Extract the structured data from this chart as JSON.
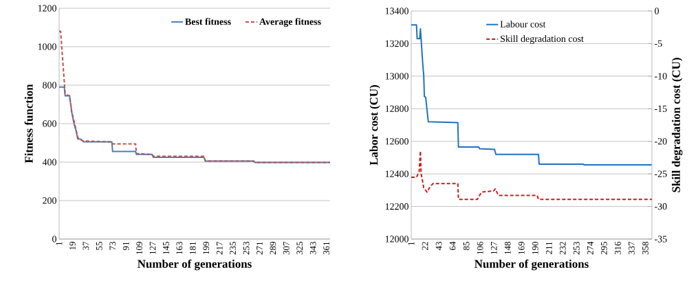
{
  "chart_data": [
    {
      "type": "line",
      "xlabel": "Number of generations",
      "ylabel": "Fitness function",
      "xlim": [
        1,
        366
      ],
      "xticks": [
        1,
        19,
        37,
        55,
        73,
        91,
        109,
        127,
        145,
        163,
        181,
        199,
        217,
        235,
        253,
        271,
        289,
        307,
        325,
        343,
        361
      ],
      "ylim": [
        0,
        1200
      ],
      "yticks": [
        0,
        200,
        400,
        600,
        800,
        1000,
        1200
      ],
      "grid": "y",
      "legend": "top right",
      "series": [
        {
          "name": "Best fitness",
          "color": "#4a7ebb",
          "line_style": "solid",
          "x": [
            1,
            8,
            9,
            15,
            18,
            21,
            24,
            26,
            30,
            34,
            72,
            73,
            104,
            105,
            126,
            128,
            196,
            198,
            263,
            265,
            366
          ],
          "values": [
            790,
            790,
            745,
            745,
            660,
            600,
            560,
            520,
            520,
            505,
            505,
            455,
            455,
            440,
            440,
            425,
            425,
            405,
            405,
            398,
            398
          ]
        },
        {
          "name": "Average fitness",
          "color": "#c0504d",
          "line_style": "dashed",
          "x": [
            1,
            3,
            9,
            11,
            15,
            18,
            22,
            26,
            28,
            33,
            72,
            73,
            104,
            105,
            126,
            128,
            196,
            198,
            263,
            265,
            366
          ],
          "values": [
            1080,
            1080,
            760,
            750,
            745,
            660,
            600,
            530,
            520,
            510,
            505,
            495,
            495,
            445,
            440,
            430,
            430,
            405,
            405,
            398,
            398
          ]
        }
      ]
    },
    {
      "type": "line",
      "xlabel": "Number of generations",
      "ylabel": "Labor cost (CU)",
      "y2label": "Skill degradation cost (CU)",
      "xlim": [
        1,
        368
      ],
      "xticks": [
        1,
        22,
        43,
        64,
        85,
        106,
        127,
        148,
        169,
        190,
        211,
        232,
        253,
        274,
        295,
        316,
        337,
        358
      ],
      "ylim": [
        12000,
        13400
      ],
      "yticks": [
        12000,
        12200,
        12400,
        12600,
        12800,
        13000,
        13200,
        13400
      ],
      "y2lim": [
        -35,
        0
      ],
      "y2ticks": [
        -35,
        -30,
        -25,
        -20,
        -15,
        -10,
        -5,
        0
      ],
      "grid": "y",
      "legend": "top",
      "series": [
        {
          "name": "Labour cost",
          "color": "#1f72c4",
          "line_style": "solid",
          "x": [
            1,
            9,
            10,
            14,
            15,
            19,
            20,
            21,
            23,
            27,
            72,
            73,
            104,
            105,
            128,
            130,
            195,
            196,
            263,
            265,
            368
          ],
          "values": [
            13315,
            13315,
            13230,
            13230,
            13290,
            13050,
            13010,
            12875,
            12870,
            12720,
            12715,
            12565,
            12565,
            12555,
            12550,
            12520,
            12520,
            12460,
            12460,
            12455,
            12455
          ]
        },
        {
          "name": "Skill degradation cost",
          "color": "#d01818",
          "line_style": "dashed",
          "axis": "y2",
          "x": [
            1,
            9,
            13,
            15,
            16,
            20,
            25,
            29,
            34,
            72,
            73,
            102,
            108,
            127,
            129,
            134,
            193,
            195,
            368
          ],
          "values": [
            -25.5,
            -25.5,
            -24.7,
            -21.5,
            -24.9,
            -27.1,
            -27.8,
            -27.1,
            -26.5,
            -26.5,
            -28.9,
            -28.9,
            -27.8,
            -27.6,
            -27.3,
            -28.3,
            -28.3,
            -28.9,
            -28.9
          ]
        }
      ]
    }
  ]
}
